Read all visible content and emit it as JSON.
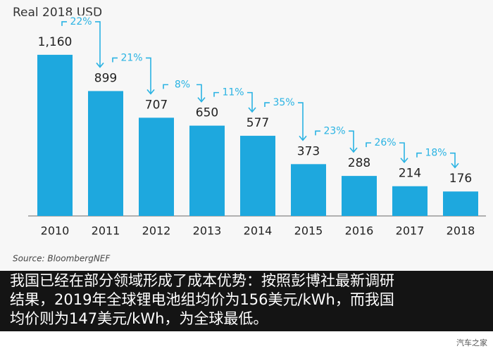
{
  "chart_data": {
    "type": "bar",
    "title": "Real 2018 USD",
    "categories": [
      "2010",
      "2011",
      "2012",
      "2013",
      "2014",
      "2015",
      "2016",
      "2017",
      "2018"
    ],
    "values": [
      1160,
      899,
      707,
      650,
      577,
      373,
      288,
      214,
      176
    ],
    "value_labels": [
      "1,160",
      "899",
      "707",
      "650",
      "577",
      "373",
      "288",
      "214",
      "176"
    ],
    "color": "#1ea8de",
    "ylim": [
      0,
      1200
    ],
    "annotations": [
      "22%",
      "21%",
      "8%",
      "11%",
      "35%",
      "23%",
      "26%",
      "18%"
    ],
    "annotation_color": "#2ab3e3",
    "source": "Source: BloombergNEF"
  },
  "caption": {
    "lines": [
      "我国已经在部分领域形成了成本优势：按照彭博社最新调研",
      "结果，2019年全球锂电池组均价为156美元/kWh，而我国",
      "均价则为147美元/kWh，为全球最低。"
    ]
  },
  "watermark": "汽车之家"
}
